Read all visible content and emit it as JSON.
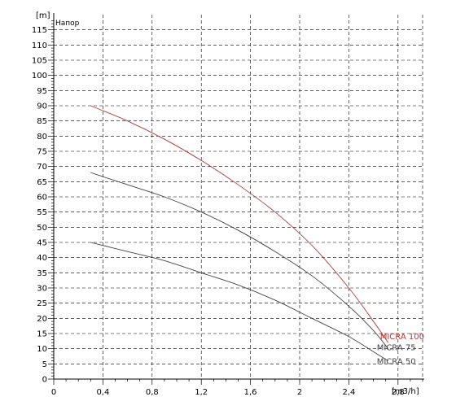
{
  "chart_data": {
    "type": "line",
    "title": "Напор",
    "ylabel": "[m]",
    "xlabel": "[m3/h]",
    "xlim": [
      0,
      3.0
    ],
    "ylim": [
      0,
      120
    ],
    "x_ticks": [
      0,
      0.4,
      0.8,
      1.2,
      1.6,
      2.0,
      2.4,
      2.8
    ],
    "x_tick_labels": [
      "0",
      "0,4",
      "0,8",
      "1,2",
      "1,6",
      "2",
      "2,4",
      "2,8"
    ],
    "y_ticks": [
      0,
      5,
      10,
      15,
      20,
      25,
      30,
      35,
      40,
      45,
      50,
      55,
      60,
      65,
      70,
      75,
      80,
      85,
      90,
      95,
      100,
      105,
      110,
      115
    ],
    "grid": true,
    "series": [
      {
        "name": "MICRA 100",
        "color": "#b03a3a",
        "x": [
          0.3,
          0.6,
          0.9,
          1.2,
          1.5,
          1.8,
          2.1,
          2.4,
          2.6,
          2.72
        ],
        "y": [
          90,
          85,
          79,
          72,
          64,
          55,
          44,
          30,
          19,
          12
        ]
      },
      {
        "name": "MICRA 75",
        "color": "#444444",
        "x": [
          0.3,
          0.6,
          0.9,
          1.2,
          1.5,
          1.8,
          2.1,
          2.4,
          2.6,
          2.72
        ],
        "y": [
          68,
          64,
          60,
          55,
          49,
          42,
          34,
          24,
          16,
          10
        ]
      },
      {
        "name": "MICRA 50",
        "color": "#444444",
        "x": [
          0.3,
          0.6,
          0.9,
          1.2,
          1.5,
          1.8,
          2.1,
          2.4,
          2.6,
          2.72
        ],
        "y": [
          45,
          42,
          39,
          35,
          31,
          26,
          20,
          14,
          9,
          6
        ]
      }
    ]
  }
}
